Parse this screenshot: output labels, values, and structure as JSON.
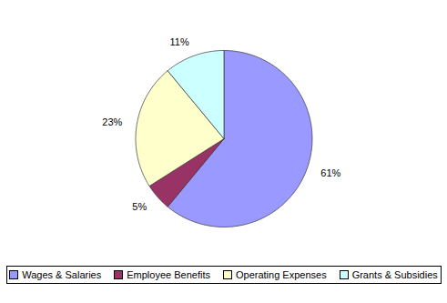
{
  "chart_data": {
    "type": "pie",
    "categories": [
      "Wages & Salaries",
      "Employee Benefits",
      "Operating Expenses",
      "Grants & Subsidies"
    ],
    "values": [
      61,
      5,
      23,
      11
    ],
    "value_labels": [
      "61%",
      "5%",
      "23%",
      "11%"
    ],
    "colors": [
      "#9999ff",
      "#993366",
      "#ffffcc",
      "#ccffff"
    ],
    "data_labels": true,
    "legend": "bottom"
  }
}
